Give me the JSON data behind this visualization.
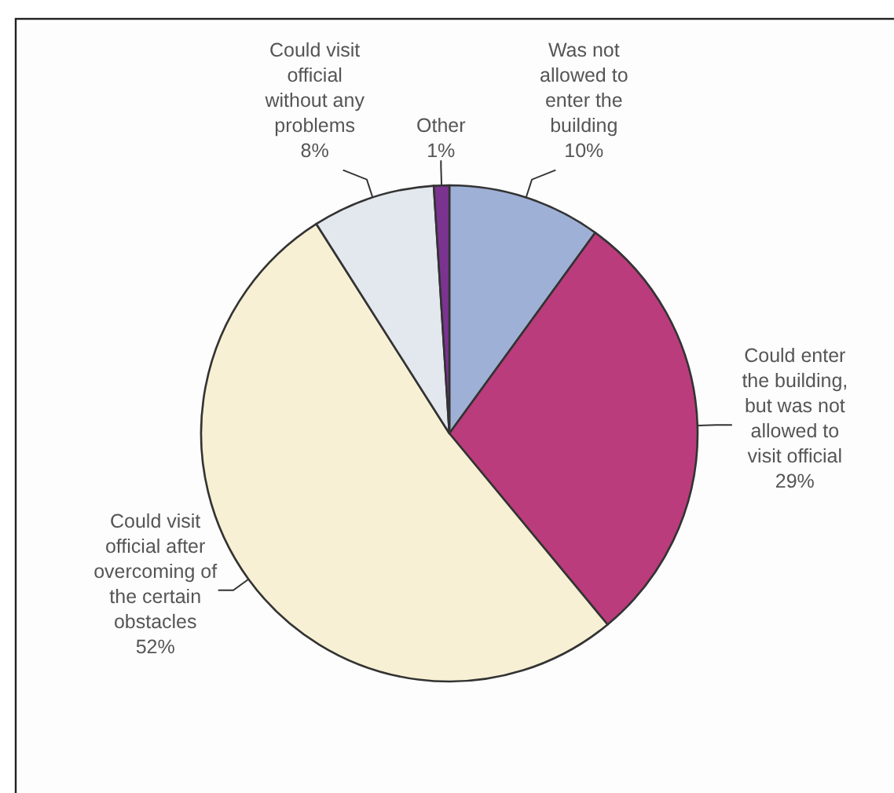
{
  "chart_data": {
    "type": "pie",
    "categories": [
      "Was not allowed to enter the building",
      "Could enter the building, but was not allowed to visit official",
      "Could visit official after overcoming of the certain obstacles",
      "Could visit official without any problems",
      "Other"
    ],
    "values": [
      10,
      29,
      52,
      8,
      1
    ],
    "value_labels": [
      "10%",
      "29%",
      "52%",
      "8%",
      "1%"
    ],
    "colors": [
      "#9fb0d6",
      "#bb3c7c",
      "#f7f0d4",
      "#e3e8ee",
      "#7b3390"
    ]
  }
}
